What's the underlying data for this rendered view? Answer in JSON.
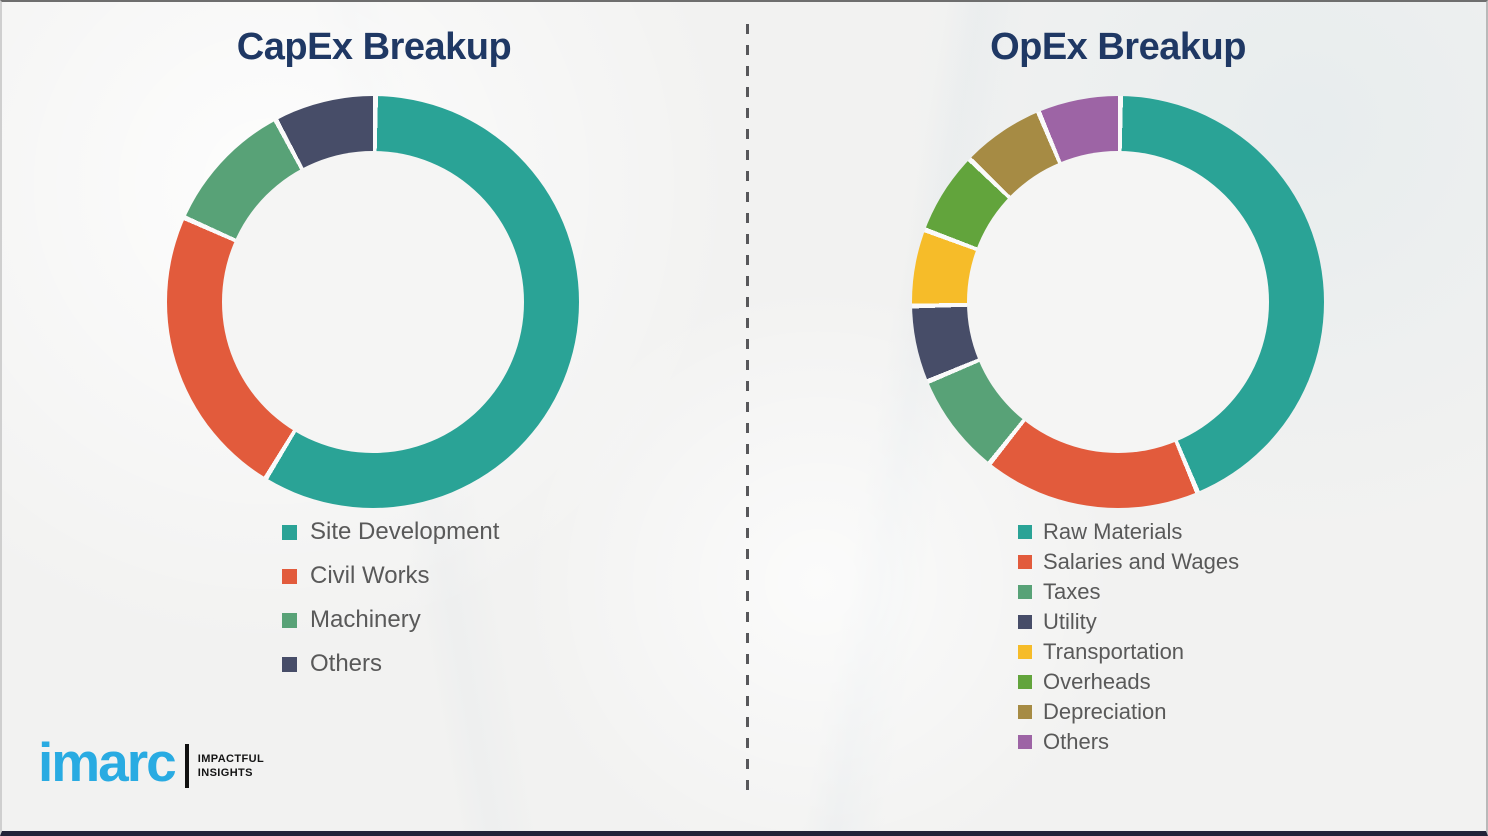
{
  "page": {
    "background_color": "#f2f2f1",
    "title_color": "#1f3864",
    "legend_text_color": "#595959",
    "divider_style": "vertical dashed line",
    "divider_color": "#57575a"
  },
  "chart_data": [
    {
      "type": "pie",
      "variant": "donut",
      "title": "CapEx Breakup",
      "categories": [
        "Site Development",
        "Civil Works",
        "Machinery",
        "Others"
      ],
      "values": [
        58.5,
        23,
        10.5,
        8
      ],
      "unit": "percent (estimated from arc angles; no numeric labels shown)",
      "colors": [
        "#2aa396",
        "#e25b3c",
        "#58a277",
        "#474d68"
      ],
      "legend_position": "below",
      "start_angle_deg": 0,
      "direction": "clockwise",
      "segment_gap_color": "#fafafa"
    },
    {
      "type": "pie",
      "variant": "donut",
      "title": "OpEx Breakup",
      "categories": [
        "Raw Materials",
        "Salaries and Wages",
        "Taxes",
        "Utility",
        "Transportation",
        "Overheads",
        "Depreciation",
        "Others"
      ],
      "values": [
        43.5,
        17,
        8,
        6,
        6,
        6.5,
        6.5,
        6.5
      ],
      "unit": "percent (estimated from arc angles; no numeric labels shown)",
      "colors": [
        "#2aa396",
        "#e25b3c",
        "#58a277",
        "#474d68",
        "#f6bc29",
        "#62a43c",
        "#a68b44",
        "#9d64a5"
      ],
      "legend_position": "below",
      "start_angle_deg": 0,
      "direction": "clockwise",
      "segment_gap_color": "#fafafa"
    }
  ],
  "logo": {
    "brand": "imarc",
    "tagline_lines": [
      "IMPACTFUL",
      "INSIGHTS"
    ],
    "brand_color": "#29abe2"
  }
}
